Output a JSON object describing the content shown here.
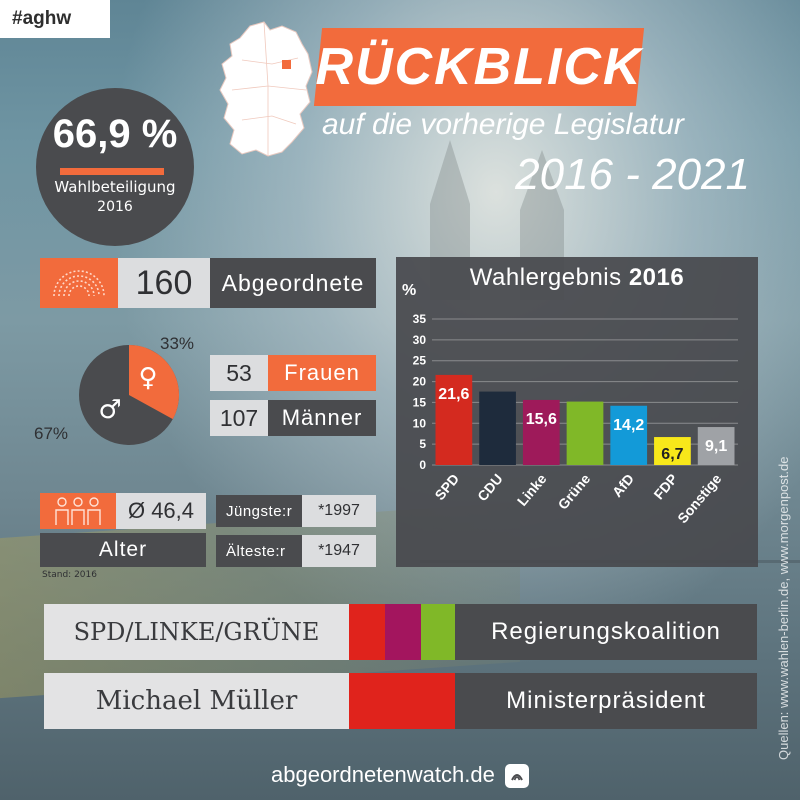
{
  "hashtag": "#aghw",
  "header": {
    "title": "RÜCKBLICK",
    "subtitle": "auf die vorherige Legislatur",
    "period": "2016 - 2021"
  },
  "turnout": {
    "value": "66,9 %",
    "label": "Wahlbeteiligung",
    "year": "2016"
  },
  "seats": {
    "value": "160",
    "label": "Abgeordnete"
  },
  "gender": {
    "female_pct": "33%",
    "male_pct": "67%",
    "female_share": 0.33,
    "women_count": "53",
    "women_label": "Frauen",
    "men_count": "107",
    "men_label": "Männer",
    "female_symbol": "♀",
    "male_symbol": "♂"
  },
  "age": {
    "average": "Ø 46,4",
    "label": "Alter",
    "stand": "Stand: 2016",
    "youngest_label": "Jüngste:r",
    "youngest_value": "*1997",
    "oldest_label": "Älteste:r",
    "oldest_value": "*1947"
  },
  "chart_data": {
    "type": "bar",
    "title_prefix": "Wahlergebnis",
    "title_year": "2016",
    "ylabel": "%",
    "categories": [
      "SPD",
      "CDU",
      "Linke",
      "Grüne",
      "AfD",
      "FDP",
      "Sonstige"
    ],
    "values": [
      21.6,
      17.6,
      15.6,
      15.2,
      14.2,
      6.7,
      9.1
    ],
    "data_labels": [
      "21,6",
      "",
      "15,6",
      "",
      "14,2",
      "6,7",
      "9,1"
    ],
    "colors": [
      "#d42a1f",
      "#1e2b3c",
      "#9e1a5a",
      "#80b828",
      "#139ad8",
      "#f8e81a",
      "#9fa2a6"
    ],
    "label_colors": [
      "#ffffff",
      "#ffffff",
      "#ffffff",
      "#ffffff",
      "#ffffff",
      "#222222",
      "#ffffff"
    ],
    "yticks": [
      0,
      5,
      10,
      15,
      20,
      25,
      30,
      35
    ],
    "ylim": [
      0,
      35
    ],
    "grid": true
  },
  "coalition": {
    "parties": "SPD/LINKE/GRÜNE",
    "label": "Regierungskoalition",
    "colors": [
      "#e0231c",
      "#a3155e",
      "#80b828"
    ]
  },
  "head_of_government": {
    "name": "Michael Müller",
    "label": "Ministerpräsident",
    "color": "#e0231c"
  },
  "footer": {
    "brand": "abgeordnetenwatch.de"
  },
  "sources": "Quellen: www.wahlen-berlin.de, www.morgenpost.de",
  "icons": {
    "parliament": "parliament-icon",
    "people": "people-icon",
    "map": "germany-map-icon",
    "logo": "abgeordnetenwatch-logo-icon"
  },
  "accent_color": "#f26b3c"
}
